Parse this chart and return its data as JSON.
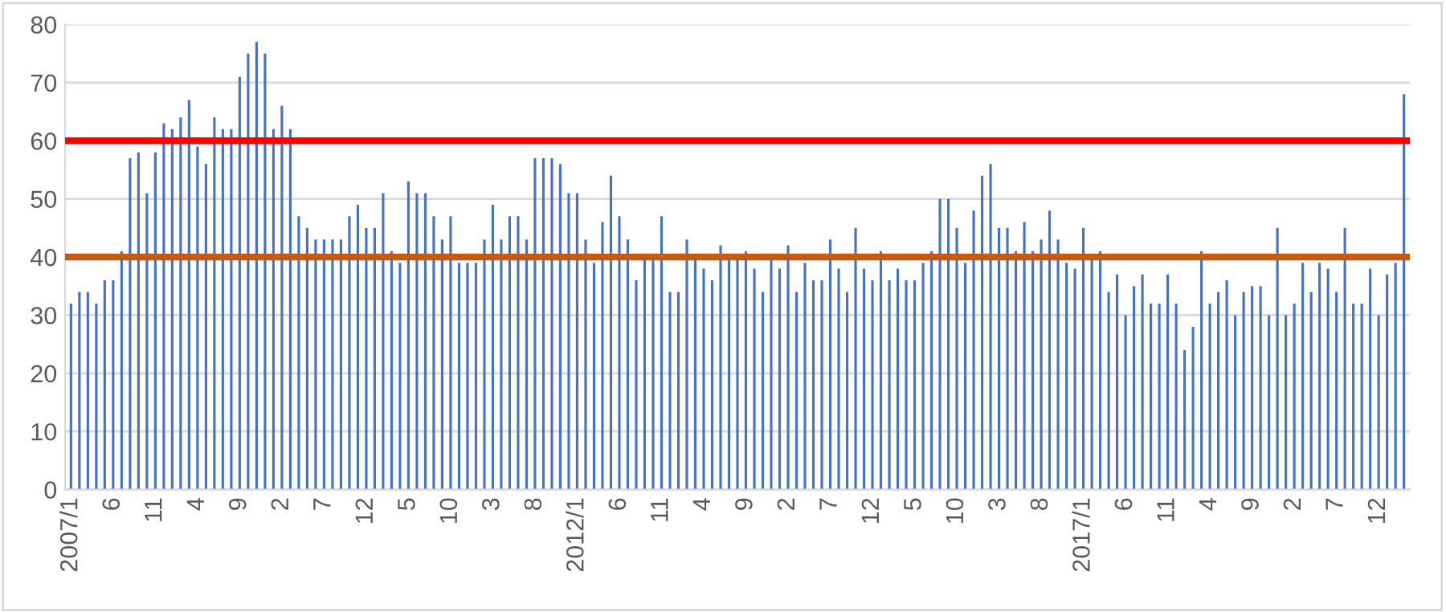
{
  "chart_data": {
    "type": "bar",
    "categories": [
      "2007/1",
      null,
      null,
      null,
      null,
      "6",
      null,
      null,
      null,
      null,
      "11",
      null,
      null,
      null,
      null,
      "4",
      null,
      null,
      null,
      null,
      "9",
      null,
      null,
      null,
      null,
      "2",
      null,
      null,
      null,
      null,
      "7",
      null,
      null,
      null,
      null,
      "12",
      null,
      null,
      null,
      null,
      "5",
      null,
      null,
      null,
      null,
      "10",
      null,
      null,
      null,
      null,
      "3",
      null,
      null,
      null,
      null,
      "8",
      null,
      null,
      null,
      null,
      "2012/1",
      null,
      null,
      null,
      null,
      "6",
      null,
      null,
      null,
      null,
      "11",
      null,
      null,
      null,
      null,
      "4",
      null,
      null,
      null,
      null,
      "9",
      null,
      null,
      null,
      null,
      "2",
      null,
      null,
      null,
      null,
      "7",
      null,
      null,
      null,
      null,
      "12",
      null,
      null,
      null,
      null,
      "5",
      null,
      null,
      null,
      null,
      "10",
      null,
      null,
      null,
      null,
      "3",
      null,
      null,
      null,
      null,
      "8",
      null,
      null,
      null,
      null,
      "2017/1",
      null,
      null,
      null,
      null,
      "6",
      null,
      null,
      null,
      null,
      "11",
      null,
      null,
      null,
      null,
      "4",
      null,
      null,
      null,
      null,
      "9",
      null,
      null,
      null,
      null,
      "2",
      null,
      null,
      null,
      null,
      "7",
      null,
      null,
      null,
      null,
      "12",
      null,
      null,
      null
    ],
    "values": [
      32,
      34,
      34,
      32,
      36,
      36,
      41,
      57,
      58,
      51,
      58,
      63,
      62,
      64,
      67,
      59,
      56,
      64,
      62,
      62,
      71,
      75,
      77,
      75,
      62,
      66,
      62,
      47,
      45,
      43,
      43,
      43,
      43,
      47,
      49,
      45,
      45,
      51,
      41,
      39,
      53,
      51,
      51,
      47,
      43,
      47,
      39,
      39,
      39,
      43,
      49,
      43,
      47,
      47,
      43,
      57,
      57,
      57,
      56,
      51,
      51,
      43,
      39,
      46,
      54,
      47,
      43,
      36,
      40,
      40,
      47,
      34,
      34,
      43,
      40,
      38,
      36,
      42,
      40,
      40,
      41,
      38,
      34,
      40,
      38,
      42,
      34,
      39,
      36,
      36,
      43,
      38,
      34,
      45,
      38,
      36,
      41,
      36,
      38,
      36,
      36,
      39,
      41,
      50,
      50,
      45,
      39,
      48,
      54,
      56,
      45,
      45,
      41,
      46,
      41,
      43,
      48,
      43,
      39,
      38,
      45,
      40,
      41,
      34,
      37,
      30,
      35,
      37,
      32,
      32,
      37,
      32,
      24,
      28,
      41,
      32,
      34,
      36,
      30,
      34,
      35,
      35,
      30,
      45,
      30,
      32,
      39,
      34,
      39,
      38,
      34,
      45,
      32,
      32,
      38,
      30,
      37,
      39,
      68
    ],
    "color": "#4472c4",
    "ylim": [
      0,
      80
    ],
    "yticks": [
      0,
      10,
      20,
      30,
      40,
      50,
      60,
      70,
      80
    ],
    "grid": "y",
    "legend": false,
    "ref_lines": [
      {
        "axis": "y",
        "value": 60,
        "color": "#ff0000"
      },
      {
        "axis": "y",
        "value": 40,
        "color": "#c55a11"
      }
    ]
  }
}
